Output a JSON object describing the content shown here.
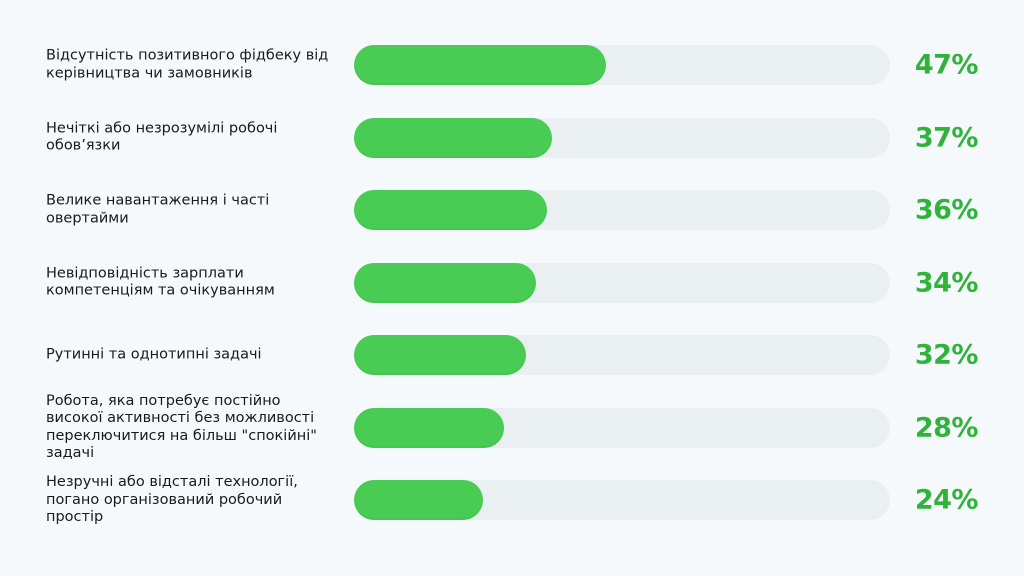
{
  "chart_data": {
    "type": "bar",
    "orientation": "horizontal",
    "categories": [
      "Відсутність позитивного фідбеку від\nкерівництва чи замовників",
      "Нечіткі або незрозумілі робочі\nобов’язки",
      "Велике навантаження і часті\nовертайми",
      "Невідповідність зарплати\nкомпетенціям та очікуванням",
      "Рутинні та однотипні задачі",
      "Робота, яка потребує постійно\nвисокої активності без можливості\nпереключитися на більш \"спокійні\"\nзадачі",
      "Незручні або відсталі технології,\nпогано організований робочий\nпростір"
    ],
    "values": [
      47,
      37,
      36,
      34,
      32,
      28,
      24
    ],
    "value_labels": [
      "47%",
      "37%",
      "36%",
      "34%",
      "32%",
      "28%",
      "24%"
    ],
    "xlim": [
      0,
      100
    ],
    "grid": false,
    "legend": "none",
    "colors": {
      "fill": "#49cc53",
      "track": "#eaeff2",
      "value_text": "#2fb33a",
      "label_text": "#1a1a1a",
      "background": "#f6f9fc"
    }
  }
}
